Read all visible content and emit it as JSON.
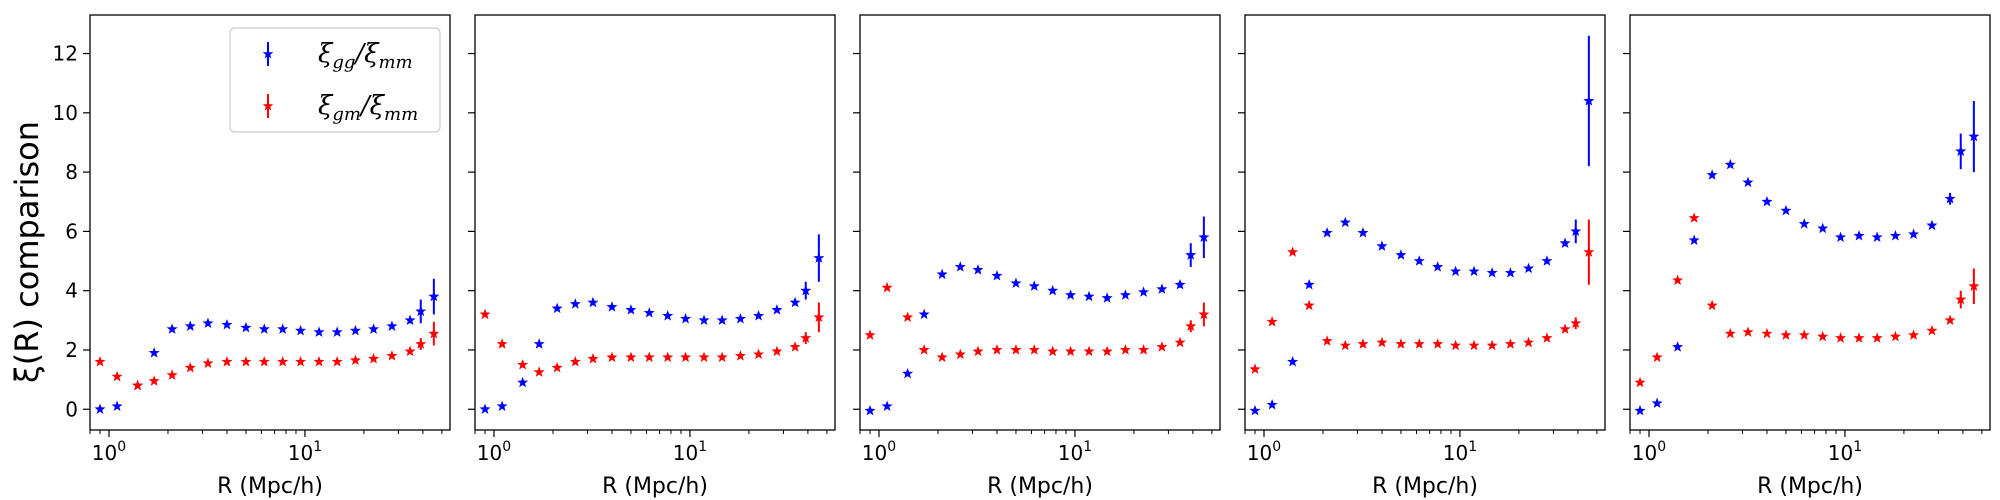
{
  "chart_data": {
    "type": "scatter",
    "ylabel": "ξ(R) comparison",
    "xlabel": "R  (Mpc/h)",
    "xscale": "log",
    "xlim": [
      0.8,
      55
    ],
    "ylim": [
      -0.7,
      13.3
    ],
    "y_ticks": [
      0,
      2,
      4,
      6,
      8,
      10,
      12
    ],
    "x_tick_labels": [
      {
        "value": 1,
        "base": "10",
        "exp": "0"
      },
      {
        "value": 10,
        "base": "10",
        "exp": "1"
      }
    ],
    "colors": {
      "gg": "#0000ff",
      "gm": "#ff0000"
    },
    "legend": {
      "placement": "top-right of first panel",
      "entries": [
        {
          "series": "gg",
          "main": "ξ",
          "sub1": "gg",
          "slash": "/ξ",
          "sub2": "mm"
        },
        {
          "series": "gm",
          "main": "ξ",
          "sub1": "gm",
          "slash": "/ξ",
          "sub2": "mm"
        }
      ]
    },
    "panels": [
      {
        "gg": [
          [
            0.9,
            0.0,
            0.05
          ],
          [
            1.1,
            0.1,
            0.05
          ],
          [
            1.4,
            0.8,
            0.05
          ],
          [
            1.7,
            1.9,
            0.05
          ],
          [
            2.1,
            2.7,
            0.05
          ],
          [
            2.6,
            2.8,
            0.05
          ],
          [
            3.2,
            2.9,
            0.05
          ],
          [
            4.0,
            2.85,
            0.05
          ],
          [
            5.0,
            2.75,
            0.05
          ],
          [
            6.2,
            2.7,
            0.05
          ],
          [
            7.7,
            2.7,
            0.05
          ],
          [
            9.5,
            2.65,
            0.05
          ],
          [
            11.8,
            2.6,
            0.05
          ],
          [
            14.6,
            2.6,
            0.05
          ],
          [
            18.1,
            2.65,
            0.05
          ],
          [
            22.4,
            2.7,
            0.05
          ],
          [
            27.8,
            2.8,
            0.05
          ],
          [
            34.4,
            3.0,
            0.1
          ],
          [
            39.0,
            3.3,
            0.4
          ],
          [
            45.5,
            3.8,
            0.6
          ]
        ],
        "gm": [
          [
            0.9,
            1.6,
            0.05
          ],
          [
            1.1,
            1.1,
            0.05
          ],
          [
            1.4,
            0.8,
            0.05
          ],
          [
            1.7,
            0.95,
            0.05
          ],
          [
            2.1,
            1.15,
            0.05
          ],
          [
            2.6,
            1.4,
            0.05
          ],
          [
            3.2,
            1.55,
            0.05
          ],
          [
            4.0,
            1.6,
            0.05
          ],
          [
            5.0,
            1.6,
            0.05
          ],
          [
            6.2,
            1.6,
            0.05
          ],
          [
            7.7,
            1.6,
            0.05
          ],
          [
            9.5,
            1.6,
            0.05
          ],
          [
            11.8,
            1.6,
            0.05
          ],
          [
            14.6,
            1.6,
            0.05
          ],
          [
            18.1,
            1.65,
            0.05
          ],
          [
            22.4,
            1.7,
            0.05
          ],
          [
            27.8,
            1.8,
            0.05
          ],
          [
            34.4,
            1.95,
            0.08
          ],
          [
            39.0,
            2.2,
            0.2
          ],
          [
            45.5,
            2.55,
            0.4
          ]
        ]
      },
      {
        "gg": [
          [
            0.9,
            0.0,
            0.05
          ],
          [
            1.1,
            0.1,
            0.05
          ],
          [
            1.4,
            0.9,
            0.05
          ],
          [
            1.7,
            2.2,
            0.05
          ],
          [
            2.1,
            3.4,
            0.05
          ],
          [
            2.6,
            3.55,
            0.05
          ],
          [
            3.2,
            3.6,
            0.05
          ],
          [
            4.0,
            3.45,
            0.05
          ],
          [
            5.0,
            3.35,
            0.05
          ],
          [
            6.2,
            3.25,
            0.05
          ],
          [
            7.7,
            3.15,
            0.05
          ],
          [
            9.5,
            3.05,
            0.05
          ],
          [
            11.8,
            3.0,
            0.05
          ],
          [
            14.6,
            3.0,
            0.05
          ],
          [
            18.1,
            3.05,
            0.05
          ],
          [
            22.4,
            3.15,
            0.05
          ],
          [
            27.8,
            3.35,
            0.05
          ],
          [
            34.4,
            3.6,
            0.1
          ],
          [
            39.0,
            4.0,
            0.3
          ],
          [
            45.5,
            5.1,
            0.8
          ]
        ],
        "gm": [
          [
            0.9,
            3.2,
            0.05
          ],
          [
            1.1,
            2.2,
            0.05
          ],
          [
            1.4,
            1.5,
            0.05
          ],
          [
            1.7,
            1.25,
            0.05
          ],
          [
            2.1,
            1.4,
            0.05
          ],
          [
            2.6,
            1.6,
            0.05
          ],
          [
            3.2,
            1.7,
            0.05
          ],
          [
            4.0,
            1.75,
            0.05
          ],
          [
            5.0,
            1.75,
            0.05
          ],
          [
            6.2,
            1.75,
            0.05
          ],
          [
            7.7,
            1.75,
            0.05
          ],
          [
            9.5,
            1.75,
            0.05
          ],
          [
            11.8,
            1.75,
            0.05
          ],
          [
            14.6,
            1.75,
            0.05
          ],
          [
            18.1,
            1.8,
            0.05
          ],
          [
            22.4,
            1.85,
            0.05
          ],
          [
            27.8,
            1.95,
            0.05
          ],
          [
            34.4,
            2.1,
            0.08
          ],
          [
            39.0,
            2.4,
            0.2
          ],
          [
            45.5,
            3.1,
            0.5
          ]
        ]
      },
      {
        "gg": [
          [
            0.9,
            -0.05,
            0.05
          ],
          [
            1.1,
            0.1,
            0.05
          ],
          [
            1.4,
            1.2,
            0.05
          ],
          [
            1.7,
            3.2,
            0.05
          ],
          [
            2.1,
            4.55,
            0.05
          ],
          [
            2.6,
            4.8,
            0.05
          ],
          [
            3.2,
            4.7,
            0.05
          ],
          [
            4.0,
            4.5,
            0.05
          ],
          [
            5.0,
            4.25,
            0.05
          ],
          [
            6.2,
            4.15,
            0.05
          ],
          [
            7.7,
            4.0,
            0.05
          ],
          [
            9.5,
            3.85,
            0.05
          ],
          [
            11.8,
            3.8,
            0.05
          ],
          [
            14.6,
            3.75,
            0.05
          ],
          [
            18.1,
            3.85,
            0.05
          ],
          [
            22.4,
            3.95,
            0.05
          ],
          [
            27.8,
            4.05,
            0.05
          ],
          [
            34.4,
            4.2,
            0.1
          ],
          [
            39.0,
            5.2,
            0.4
          ],
          [
            45.5,
            5.8,
            0.7
          ]
        ],
        "gm": [
          [
            0.9,
            2.5,
            0.05
          ],
          [
            1.1,
            4.1,
            0.05
          ],
          [
            1.4,
            3.1,
            0.05
          ],
          [
            1.7,
            2.0,
            0.05
          ],
          [
            2.1,
            1.75,
            0.05
          ],
          [
            2.6,
            1.85,
            0.05
          ],
          [
            3.2,
            1.95,
            0.05
          ],
          [
            4.0,
            2.0,
            0.05
          ],
          [
            5.0,
            2.0,
            0.05
          ],
          [
            6.2,
            2.0,
            0.05
          ],
          [
            7.7,
            1.95,
            0.05
          ],
          [
            9.5,
            1.95,
            0.05
          ],
          [
            11.8,
            1.95,
            0.05
          ],
          [
            14.6,
            1.95,
            0.05
          ],
          [
            18.1,
            2.0,
            0.05
          ],
          [
            22.4,
            2.0,
            0.05
          ],
          [
            27.8,
            2.1,
            0.05
          ],
          [
            34.4,
            2.25,
            0.08
          ],
          [
            39.0,
            2.8,
            0.2
          ],
          [
            45.5,
            3.2,
            0.4
          ]
        ]
      },
      {
        "gg": [
          [
            0.9,
            -0.05,
            0.05
          ],
          [
            1.1,
            0.15,
            0.05
          ],
          [
            1.4,
            1.6,
            0.05
          ],
          [
            1.7,
            4.2,
            0.05
          ],
          [
            2.1,
            5.95,
            0.05
          ],
          [
            2.6,
            6.3,
            0.05
          ],
          [
            3.2,
            5.95,
            0.05
          ],
          [
            4.0,
            5.5,
            0.05
          ],
          [
            5.0,
            5.2,
            0.05
          ],
          [
            6.2,
            5.0,
            0.05
          ],
          [
            7.7,
            4.8,
            0.05
          ],
          [
            9.5,
            4.65,
            0.05
          ],
          [
            11.8,
            4.65,
            0.05
          ],
          [
            14.6,
            4.6,
            0.05
          ],
          [
            18.1,
            4.6,
            0.05
          ],
          [
            22.4,
            4.75,
            0.05
          ],
          [
            27.8,
            5.0,
            0.05
          ],
          [
            34.4,
            5.6,
            0.1
          ],
          [
            39.0,
            6.0,
            0.4
          ],
          [
            45.5,
            10.4,
            2.2
          ]
        ],
        "gm": [
          [
            0.9,
            1.35,
            0.05
          ],
          [
            1.1,
            2.95,
            0.05
          ],
          [
            1.4,
            5.3,
            0.05
          ],
          [
            1.7,
            3.5,
            0.05
          ],
          [
            2.1,
            2.3,
            0.05
          ],
          [
            2.6,
            2.15,
            0.05
          ],
          [
            3.2,
            2.2,
            0.05
          ],
          [
            4.0,
            2.25,
            0.05
          ],
          [
            5.0,
            2.2,
            0.05
          ],
          [
            6.2,
            2.2,
            0.05
          ],
          [
            7.7,
            2.2,
            0.05
          ],
          [
            9.5,
            2.15,
            0.05
          ],
          [
            11.8,
            2.15,
            0.05
          ],
          [
            14.6,
            2.15,
            0.05
          ],
          [
            18.1,
            2.2,
            0.05
          ],
          [
            22.4,
            2.25,
            0.05
          ],
          [
            27.8,
            2.4,
            0.05
          ],
          [
            34.4,
            2.7,
            0.08
          ],
          [
            39.0,
            2.9,
            0.2
          ],
          [
            45.5,
            5.3,
            1.1
          ]
        ]
      },
      {
        "gg": [
          [
            0.9,
            -0.05,
            0.05
          ],
          [
            1.1,
            0.2,
            0.05
          ],
          [
            1.4,
            2.1,
            0.05
          ],
          [
            1.7,
            5.7,
            0.05
          ],
          [
            2.1,
            7.9,
            0.05
          ],
          [
            2.6,
            8.25,
            0.05
          ],
          [
            3.2,
            7.65,
            0.05
          ],
          [
            4.0,
            7.0,
            0.05
          ],
          [
            5.0,
            6.7,
            0.05
          ],
          [
            6.2,
            6.25,
            0.05
          ],
          [
            7.7,
            6.1,
            0.05
          ],
          [
            9.5,
            5.8,
            0.05
          ],
          [
            11.8,
            5.85,
            0.05
          ],
          [
            14.6,
            5.8,
            0.05
          ],
          [
            18.1,
            5.85,
            0.05
          ],
          [
            22.4,
            5.9,
            0.05
          ],
          [
            27.8,
            6.2,
            0.05
          ],
          [
            34.4,
            7.1,
            0.2
          ],
          [
            39.0,
            8.7,
            0.6
          ],
          [
            45.5,
            9.2,
            1.2
          ]
        ],
        "gm": [
          [
            0.9,
            0.9,
            0.05
          ],
          [
            1.1,
            1.75,
            0.05
          ],
          [
            1.4,
            4.35,
            0.05
          ],
          [
            1.7,
            6.45,
            0.05
          ],
          [
            2.1,
            3.5,
            0.05
          ],
          [
            2.6,
            2.55,
            0.05
          ],
          [
            3.2,
            2.6,
            0.05
          ],
          [
            4.0,
            2.55,
            0.05
          ],
          [
            5.0,
            2.5,
            0.05
          ],
          [
            6.2,
            2.5,
            0.05
          ],
          [
            7.7,
            2.45,
            0.05
          ],
          [
            9.5,
            2.4,
            0.05
          ],
          [
            11.8,
            2.4,
            0.05
          ],
          [
            14.6,
            2.4,
            0.05
          ],
          [
            18.1,
            2.45,
            0.05
          ],
          [
            22.4,
            2.5,
            0.05
          ],
          [
            27.8,
            2.65,
            0.05
          ],
          [
            34.4,
            3.0,
            0.08
          ],
          [
            39.0,
            3.7,
            0.3
          ],
          [
            45.5,
            4.15,
            0.6
          ]
        ]
      }
    ]
  }
}
